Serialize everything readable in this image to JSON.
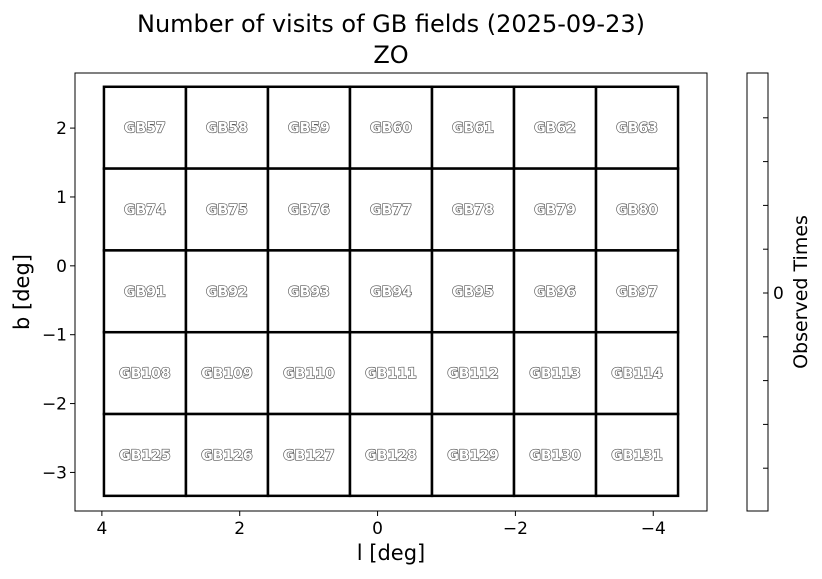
{
  "chart_data": {
    "type": "heatmap",
    "title": "Number of visits of GB fields (2025-09-23)",
    "subtitle": "ZO",
    "xlabel": "l [deg]",
    "ylabel": "b [deg]",
    "xlim": [
      4.39,
      -4.78
    ],
    "ylim": [
      -3.56,
      2.8
    ],
    "xticks": [
      4,
      2,
      0,
      -2,
      -4
    ],
    "xtick_labels": [
      "4",
      "2",
      "0",
      "−2",
      "−4"
    ],
    "yticks": [
      2,
      1,
      0,
      -1,
      -2,
      -3
    ],
    "ytick_labels": [
      "2",
      "1",
      "0",
      "−1",
      "−2",
      "−3"
    ],
    "grid": false,
    "field_grid": {
      "l_range": [
        3.97,
        -4.36
      ],
      "b_range": [
        2.6,
        -3.34
      ],
      "columns": 7,
      "rows": 5
    },
    "fields": [
      [
        "GB57",
        "GB58",
        "GB59",
        "GB60",
        "GB61",
        "GB62",
        "GB63"
      ],
      [
        "GB74",
        "GB75",
        "GB76",
        "GB77",
        "GB78",
        "GB79",
        "GB80"
      ],
      [
        "GB91",
        "GB92",
        "GB93",
        "GB94",
        "GB95",
        "GB96",
        "GB97"
      ],
      [
        "GB108",
        "GB109",
        "GB110",
        "GB111",
        "GB112",
        "GB113",
        "GB114"
      ],
      [
        "GB125",
        "GB126",
        "GB127",
        "GB128",
        "GB129",
        "GB130",
        "GB131"
      ]
    ],
    "visits": 0,
    "colorbar": {
      "label": "Observed Times",
      "tick_labels": [
        "0"
      ],
      "color": "#ffffff"
    }
  }
}
